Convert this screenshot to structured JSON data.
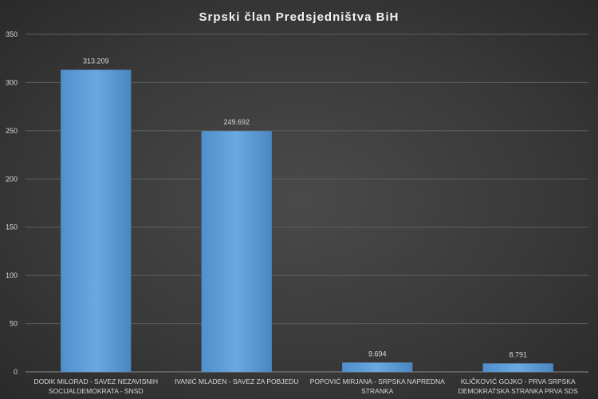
{
  "chart_data": {
    "type": "bar",
    "title": "Srpski  član  Predsjedništva  BiH",
    "categories": [
      [
        "DODIK MILORAD - SAVEZ NEZAVISNIH",
        "SOCIJALDEMOKRATA - SNSD"
      ],
      [
        "IVANIĆ MLADEN - SAVEZ ZA POBJEDU"
      ],
      [
        "POPOVIĆ MIRJANA - SRPSKA NAPREDNA",
        "STRANKA"
      ],
      [
        "KLIČKOVIĆ GOJKO - PRVA SRPSKA",
        "DEMOKRATSKA STRANKA PRVA SDS"
      ]
    ],
    "values": [
      313.209,
      249.692,
      9.694,
      8.791
    ],
    "value_labels": [
      "313.209",
      "249.692",
      "9.694",
      "8.791"
    ],
    "ylim": [
      0,
      350
    ],
    "yticks": [
      0,
      50,
      100,
      150,
      200,
      250,
      300,
      350
    ],
    "grid": true,
    "bar_color": "#5b9bd5"
  }
}
